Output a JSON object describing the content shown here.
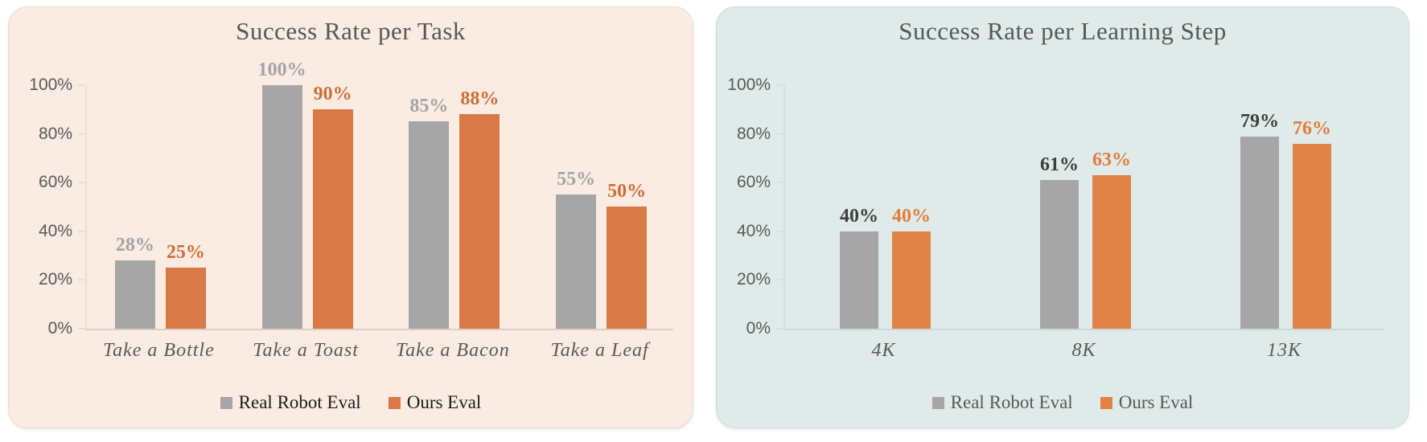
{
  "page": {
    "background": "#FFFFFF"
  },
  "chart_data": [
    {
      "type": "bar",
      "title": "Success Rate per Task",
      "categories": [
        "Take a Bottle",
        "Take a Toast",
        "Take a Bacon",
        "Take a Leaf"
      ],
      "series": [
        {
          "name": "Real Robot Eval",
          "values": [
            28,
            100,
            85,
            55
          ],
          "value_labels": [
            "28%",
            "100%",
            "85%",
            "55%"
          ],
          "bar_color": "#A6A6A6",
          "label_color": "#A4A4A4"
        },
        {
          "name": "Ours Eval",
          "values": [
            25,
            90,
            88,
            50
          ],
          "value_labels": [
            "25%",
            "90%",
            "88%",
            "50%"
          ],
          "bar_color": "#D87946",
          "label_color": "#CF6E37"
        }
      ],
      "ylim": [
        0,
        100
      ],
      "y_ticks": [
        {
          "value": 100,
          "label": "100%"
        },
        {
          "value": 80,
          "label": "80%"
        },
        {
          "value": 60,
          "label": "60%"
        },
        {
          "value": 40,
          "label": "40%"
        },
        {
          "value": 20,
          "label": "20%"
        },
        {
          "value": 0,
          "label": "0%"
        }
      ],
      "grid": false,
      "legend_position": "bottom",
      "panel_background": "#FAECE2",
      "title_color": "#575757",
      "axis_text_color": "#595959",
      "legend_text_color": "#1C1C1C",
      "axis_line_color": "#EADDD4",
      "baseline_color": "#DAD0C8"
    },
    {
      "type": "bar",
      "title": "Success Rate per Learning Step",
      "categories": [
        "4K",
        "8K",
        "13K"
      ],
      "series": [
        {
          "name": "Real Robot Eval",
          "values": [
            40,
            61,
            79
          ],
          "value_labels": [
            "40%",
            "61%",
            "79%"
          ],
          "bar_color": "#A6A6A6",
          "label_color": "#3E3E3E"
        },
        {
          "name": "Ours Eval",
          "values": [
            40,
            63,
            76
          ],
          "value_labels": [
            "40%",
            "63%",
            "76%"
          ],
          "bar_color": "#E08348",
          "label_color": "#E07C3C"
        }
      ],
      "ylim": [
        0,
        100
      ],
      "y_ticks": [
        {
          "value": 100,
          "label": "100%"
        },
        {
          "value": 80,
          "label": "80%"
        },
        {
          "value": 60,
          "label": "60%"
        },
        {
          "value": 40,
          "label": "40%"
        },
        {
          "value": 20,
          "label": "20%"
        },
        {
          "value": 0,
          "label": "0%"
        }
      ],
      "grid": false,
      "legend_position": "bottom",
      "panel_background": "#E0EBE9",
      "title_color": "#575757",
      "axis_text_color": "#595959",
      "legend_text_color": "#575757",
      "axis_line_color": "#D3E2DF",
      "baseline_color": "#CBDAD7"
    }
  ]
}
